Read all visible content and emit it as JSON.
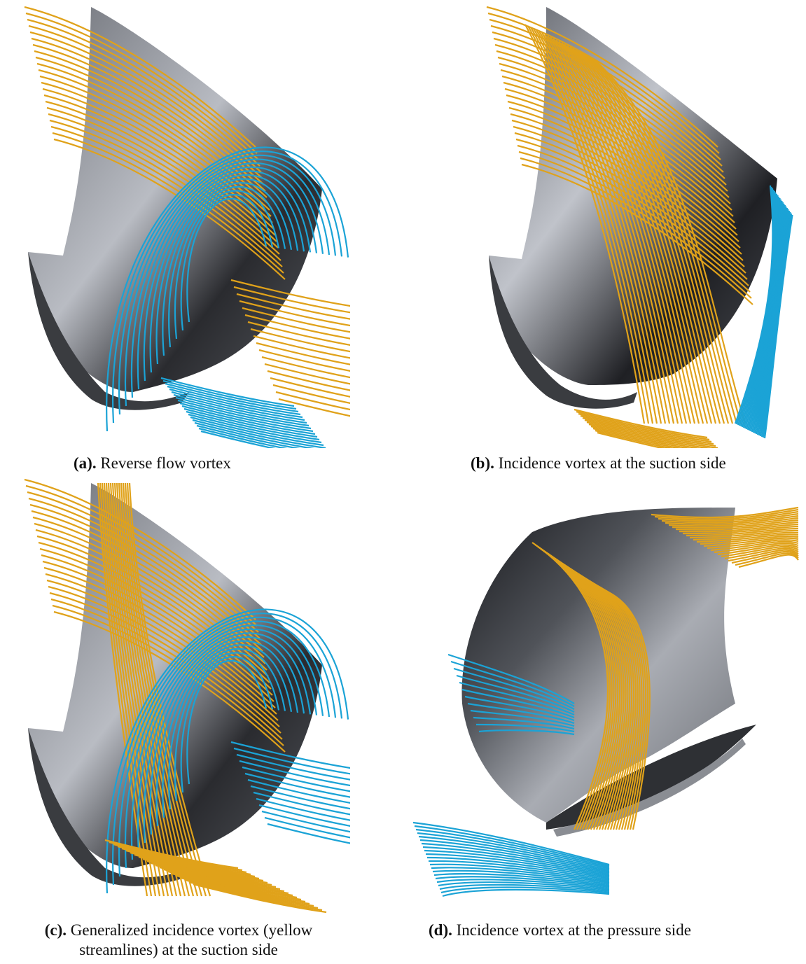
{
  "figure": {
    "panels": [
      {
        "id": "a",
        "label": "(a).",
        "caption": "Reverse flow vortex"
      },
      {
        "id": "b",
        "label": "(b).",
        "caption": "Incidence vortex at the suction side"
      },
      {
        "id": "c",
        "label": "(c).",
        "caption_line1": "Generalized incidence vortex (yellow",
        "caption_line2": "streamlines) at the suction side"
      },
      {
        "id": "d",
        "label": "(d).",
        "caption": "Incidence vortex at the pressure side"
      }
    ],
    "colors": {
      "blade_dark": "#1e1f22",
      "blade_light": "#b9bcc3",
      "streamline_yellow": "#e0a21a",
      "streamline_blue": "#1ba3d6"
    }
  }
}
